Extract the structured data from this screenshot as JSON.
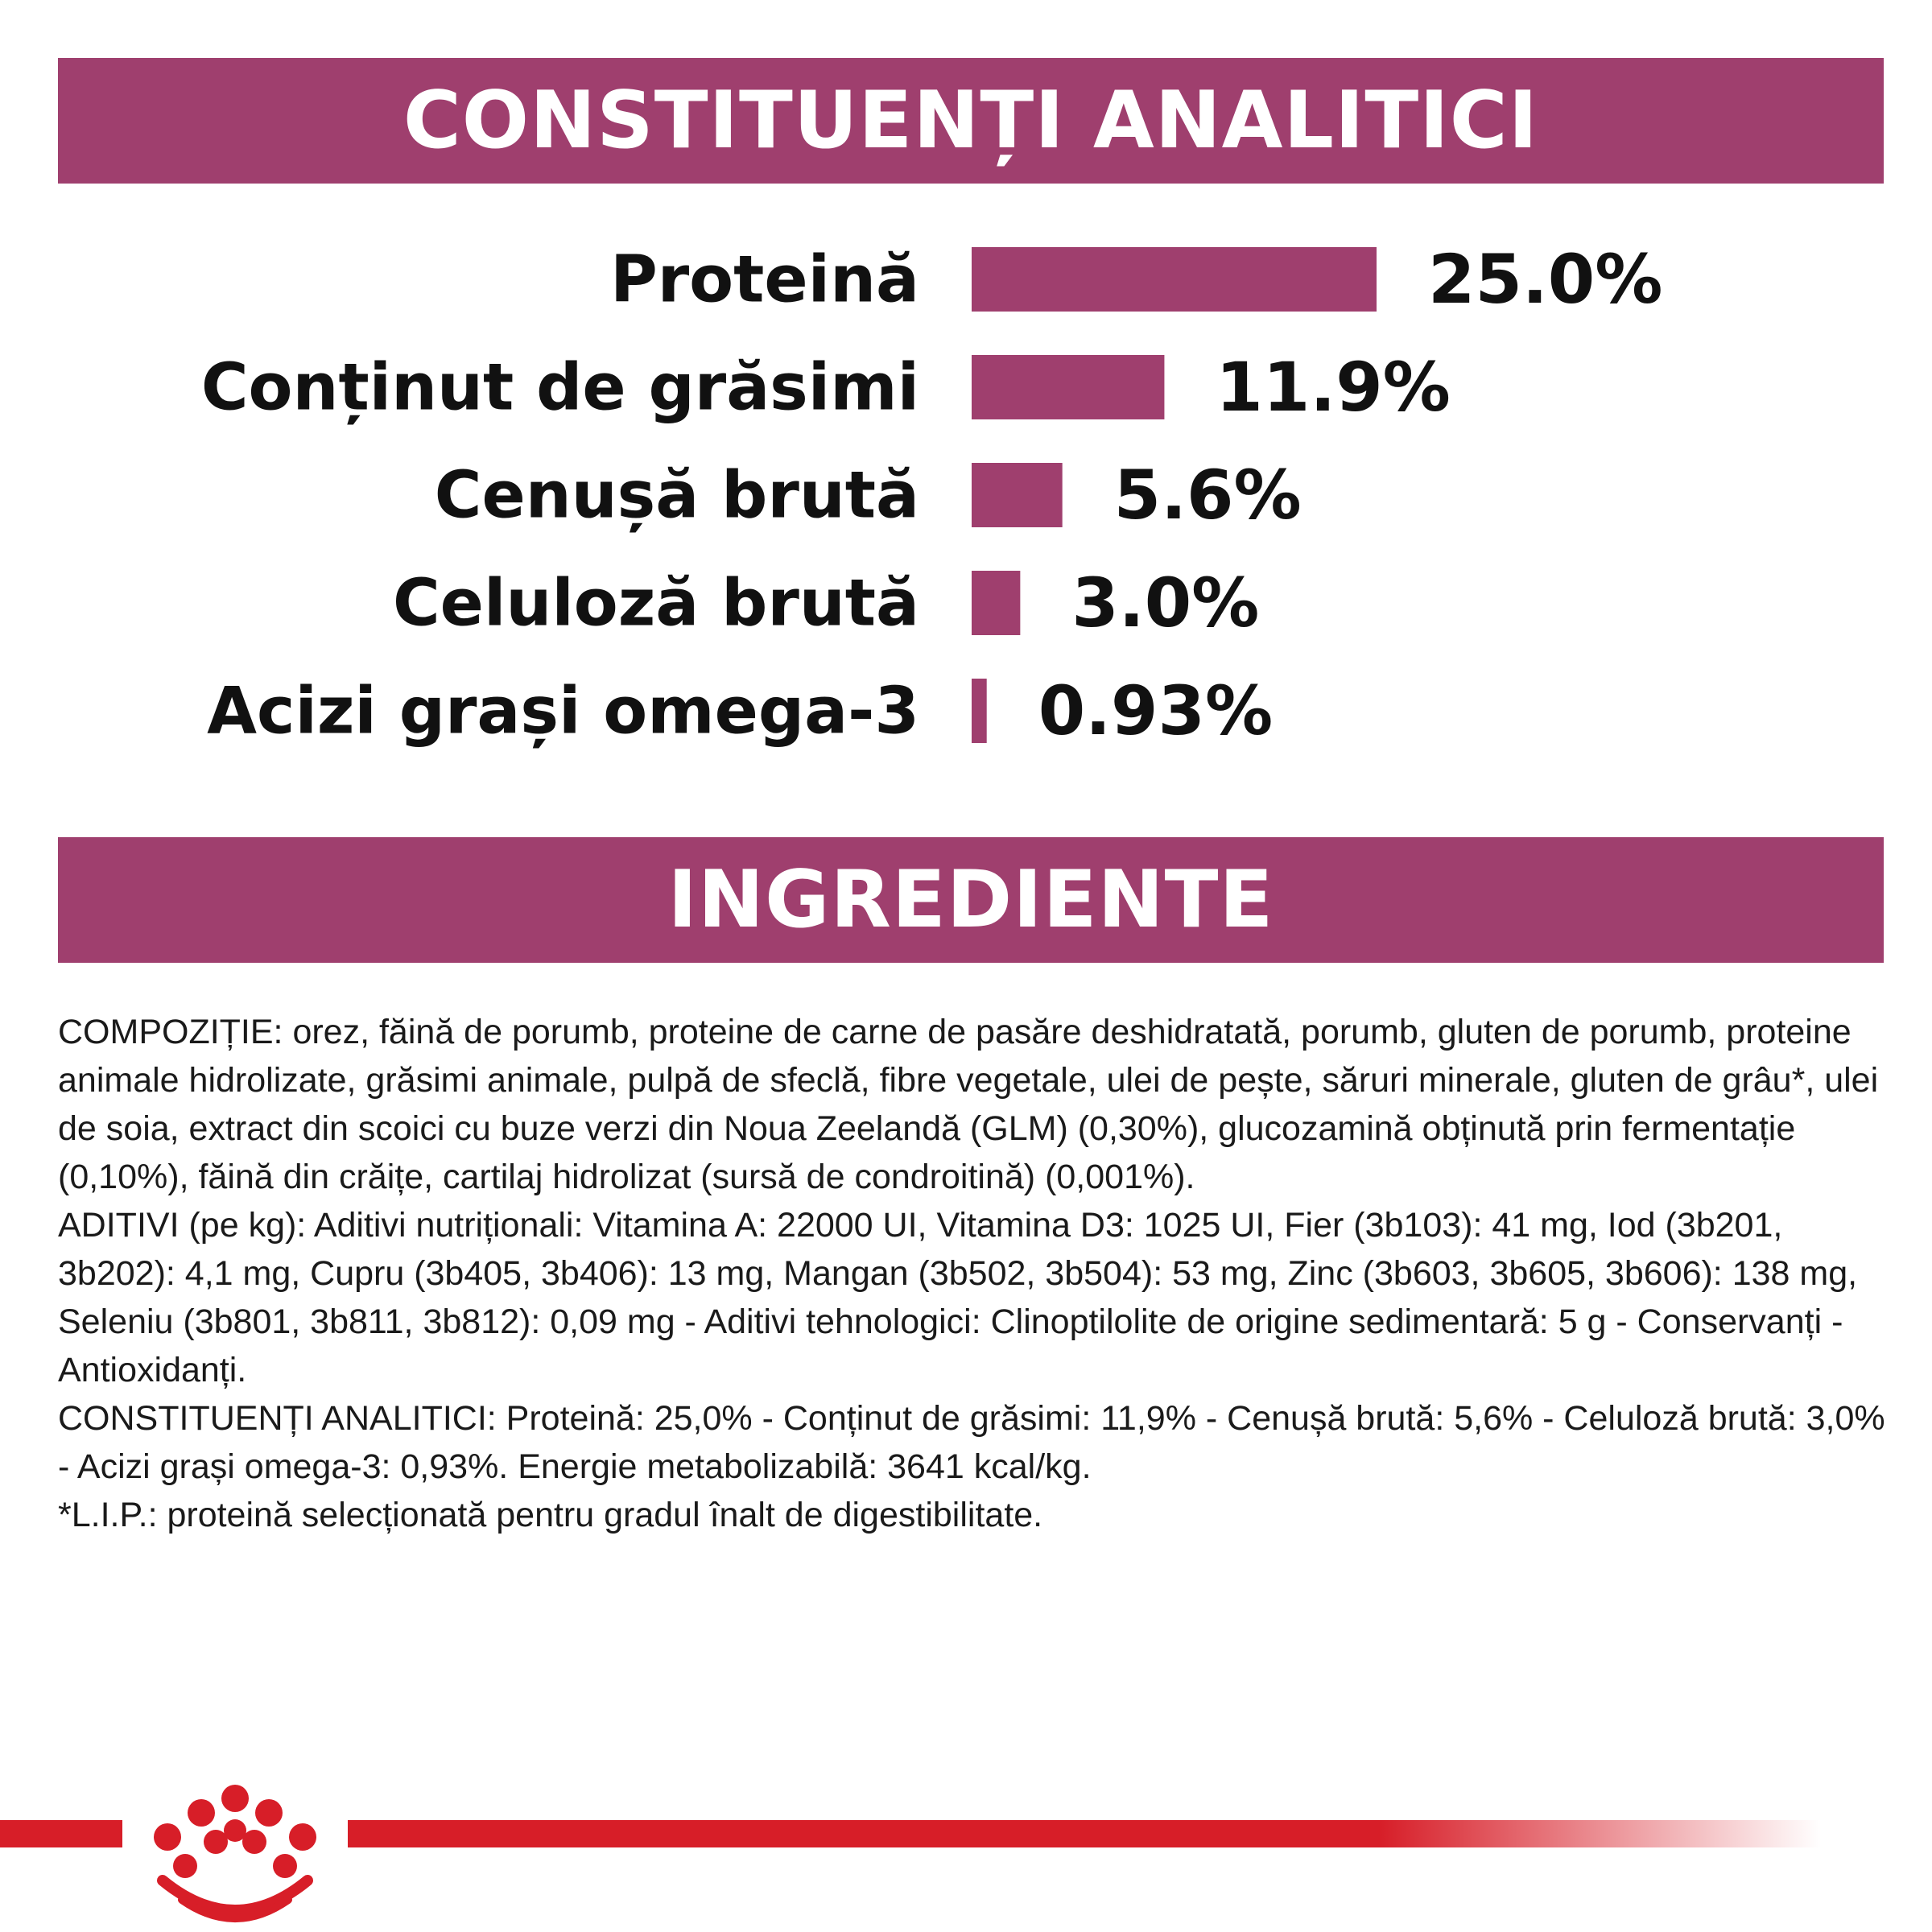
{
  "colors": {
    "banner": "#9f3f6e",
    "bar": "#9f3f6e",
    "brand_red": "#d71e28"
  },
  "sections": {
    "analytic_title": "CONSTITUENȚI ANALITICI",
    "ingredients_title": "INGREDIENTE"
  },
  "chart_data": {
    "type": "bar",
    "orientation": "horizontal",
    "categories": [
      "Proteină",
      "Conținut de grăsimi",
      "Cenușă brută",
      "Celuloză brută",
      "Acizi grași omega-3"
    ],
    "values": [
      25.0,
      11.9,
      5.6,
      3.0,
      0.93
    ],
    "value_labels": [
      "25.0%",
      "11.9%",
      "5.6%",
      "3.0%",
      "0.93%"
    ],
    "unit": "%",
    "xlim": [
      0,
      25
    ],
    "grid": false,
    "axes_visible": false
  },
  "ingredients": {
    "composition": "COMPOZIȚIE: orez, făină de porumb, proteine de carne de pasăre deshidratată, porumb, gluten de porumb, proteine animale hidrolizate, grăsimi animale, pulpă de sfeclă, fibre vegetale, ulei de pește, săruri minerale, gluten de grâu*, ulei de soia, extract din scoici cu buze verzi din Noua Zeelandă (GLM) (0,30%), glucozamină obținută prin fermentație (0,10%), făină din crăițe, cartilaj hidrolizat (sursă de condroitină) (0,001%).",
    "additives": "ADITIVI (pe kg): Aditivi nutriționali: Vitamina A: 22000 UI, Vitamina D3: 1025 UI, Fier (3b103): 41 mg, Iod (3b201, 3b202): 4,1 mg, Cupru (3b405, 3b406): 13 mg, Mangan (3b502, 3b504): 53 mg, Zinc (3b603, 3b605, 3b606): 138 mg, Seleniu (3b801, 3b811, 3b812): 0,09 mg - Aditivi tehnologici: Clinoptilolite de origine sedimentară: 5 g - Conservanți - Antioxidanți.",
    "analytic": "CONSTITUENȚI ANALITICI: Proteină: 25,0% - Conținut de grăsimi: 11,9% - Cenușă brută: 5,6% - Celuloză brută: 3,0% - Acizi grași omega-3: 0,93%. Energie metabolizabilă: 3641 kcal/kg.",
    "footnote": "*L.I.P.: proteină selecționată pentru gradul înalt de digestibilitate."
  },
  "footer": {
    "logo_icon": "royal-canin-crown-icon"
  }
}
